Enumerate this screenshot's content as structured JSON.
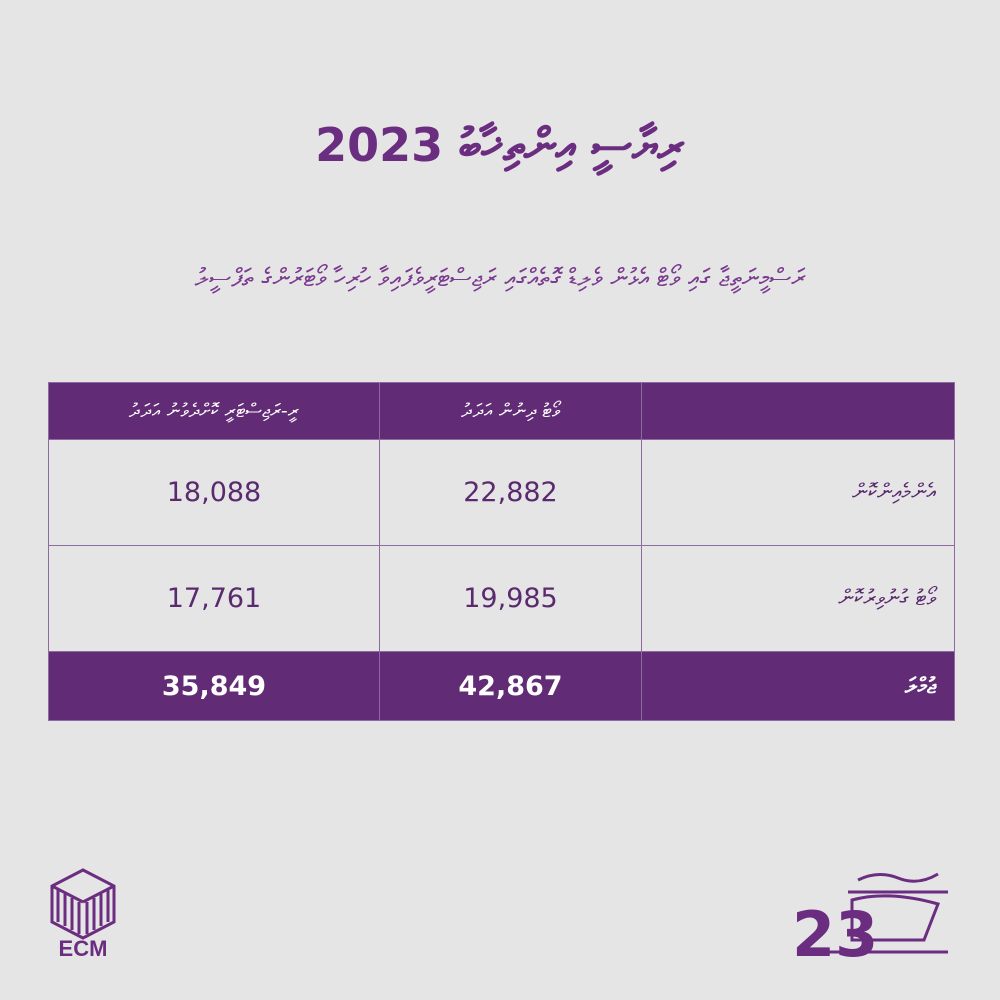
{
  "title": "ރިޔާސީ އިންތިޚާބު 2023",
  "subtitle": "ރަސްމީނަތީޖާ ގައި ވޯޓް އެޅުން ވެލިޑް ގޮތެއްގައި ރަޖިސްޓަރީވެފައިވާ ހުރިހާ ވޯޓަރުންގެ ތަފްސީލު",
  "table": {
    "headers": [
      "",
      "ވޯޓު ދިނުން އަދަދު",
      "ރީ-ރަޖިސްޓަރީ ކޮށްދެވުނު އަދަދު"
    ],
    "rows": [
      {
        "label": "އެންމެއިންކޮން",
        "vote": "22,882",
        "rereg": "18,088"
      },
      {
        "label": "ވޯޓު ގުނުވިރުކޮން",
        "vote": "19,985",
        "rereg": "17,761"
      }
    ],
    "total": {
      "label": "ޖުމްލަ",
      "vote": "42,867",
      "rereg": "35,849"
    }
  },
  "logos": {
    "ecm_text": "ECM",
    "election_number": "23",
    "accent_color": "#622b75"
  }
}
